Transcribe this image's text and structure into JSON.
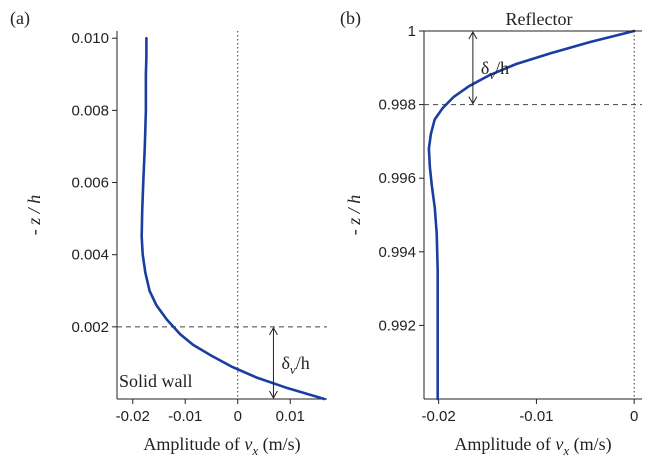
{
  "chart_data": [
    {
      "type": "line",
      "panel_label": "(a)",
      "xlabel_prefix": "Amplitude of ",
      "xlabel_var": "v",
      "xlabel_sub": "x",
      "xlabel_unit": " (m/s)",
      "ylabel": "- z / h",
      "xlim": [
        -0.023,
        0.017
      ],
      "ylim": [
        0.0,
        0.0102
      ],
      "xticks": [
        -0.02,
        -0.01,
        0,
        0.01
      ],
      "xtick_labels": [
        "-0.02",
        "-0.01",
        "0",
        "0.01"
      ],
      "yticks": [
        0.002,
        0.004,
        0.006,
        0.008,
        0.01
      ],
      "ytick_labels": [
        "0.002",
        "0.004",
        "0.006",
        "0.008",
        "0.010"
      ],
      "boundary_line_y": 0.002,
      "zero_line_x": 0,
      "annotation_text": "δ",
      "annotation_sub": "v",
      "annotation_tail": "/h",
      "annotation_x": 0.0068,
      "boundary_text": "Solid wall",
      "series": [
        {
          "color": "#1a3ea0",
          "x": [
            0.0165,
            0.0095,
            0.0035,
            -0.0012,
            -0.005,
            -0.0085,
            -0.011,
            -0.0135,
            -0.0155,
            -0.0168,
            -0.0176,
            -0.0181,
            -0.0183,
            -0.0182,
            -0.018,
            -0.0177,
            -0.0175,
            -0.0175,
            -0.0174,
            -0.0174
          ],
          "y": [
            0.0,
            0.0003,
            0.0006,
            0.0009,
            0.0012,
            0.0015,
            0.0018,
            0.0022,
            0.0026,
            0.003,
            0.0035,
            0.004,
            0.0045,
            0.0052,
            0.006,
            0.007,
            0.008,
            0.009,
            0.0095,
            0.01
          ]
        }
      ]
    },
    {
      "type": "line",
      "panel_label": "(b)",
      "xlabel_prefix": "Amplitude of ",
      "xlabel_var": "v",
      "xlabel_sub": "x",
      "xlabel_unit": " (m/s)",
      "ylabel": "- z / h",
      "xlim": [
        -0.0215,
        0.0008
      ],
      "ylim": [
        0.99,
        1.0
      ],
      "xticks": [
        -0.02,
        -0.01,
        0
      ],
      "xtick_labels": [
        "-0.02",
        "-0.01",
        "0"
      ],
      "yticks": [
        0.992,
        0.994,
        0.996,
        0.998,
        1.0
      ],
      "ytick_labels": [
        "0.992",
        "0.994",
        "0.996",
        "0.998",
        "1"
      ],
      "boundary_line_y": 0.998,
      "zero_line_x": 0,
      "annotation_text": "δ",
      "annotation_sub": "v",
      "annotation_tail": "/h",
      "annotation_x": -0.0165,
      "boundary_text": "Reflector",
      "series": [
        {
          "color": "#1a3ea0",
          "x": [
            0.0,
            -0.0045,
            -0.0085,
            -0.0121,
            -0.0148,
            -0.0169,
            -0.0185,
            -0.0196,
            -0.0204,
            -0.0208,
            -0.021,
            -0.0209,
            -0.0207,
            -0.0204,
            -0.0202,
            -0.0201,
            -0.0201,
            -0.0201
          ],
          "y": [
            1.0,
            0.9997,
            0.9994,
            0.9991,
            0.9988,
            0.9985,
            0.9982,
            0.9979,
            0.9976,
            0.9972,
            0.9968,
            0.9963,
            0.9958,
            0.9952,
            0.9945,
            0.9935,
            0.992,
            0.99
          ]
        }
      ]
    }
  ]
}
